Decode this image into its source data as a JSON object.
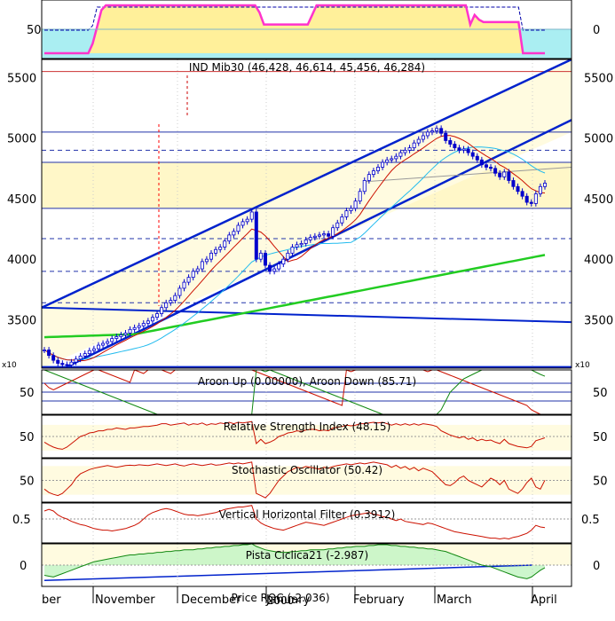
{
  "chart_data": [
    {
      "type": "line",
      "panel": "top-indicator",
      "yticks": [
        50
      ],
      "right_ticks": [
        0
      ],
      "series": [
        {
          "values": [
            0,
            0,
            0,
            0,
            0,
            0,
            0,
            0,
            0,
            0,
            0,
            20,
            55,
            90,
            100,
            100,
            100,
            100,
            100,
            100,
            100,
            100,
            100,
            100,
            100,
            100,
            100,
            100,
            100,
            100,
            100,
            100,
            100,
            100,
            100,
            100,
            100,
            100,
            100,
            100,
            100,
            100,
            100,
            100,
            100,
            100,
            100,
            100,
            100,
            85,
            60,
            60,
            60,
            60,
            60,
            60,
            60,
            60,
            60,
            60,
            60,
            80,
            100,
            100,
            100,
            100,
            100,
            100,
            100,
            100,
            100,
            100,
            100,
            100,
            100,
            100,
            100,
            100,
            100,
            100,
            100,
            100,
            100,
            100,
            100,
            100,
            100,
            100,
            100,
            100,
            100,
            100,
            100,
            100,
            100,
            100,
            100,
            60,
            80,
            70,
            65,
            65,
            65,
            65,
            65,
            65,
            65,
            65,
            65,
            0,
            0,
            0,
            0,
            0,
            0
          ]
        }
      ]
    },
    {
      "type": "candlestick",
      "panel": "price",
      "title": "IND Mib30 (46,428, 46,614, 45,456, 46,284)",
      "ylim": [
        3100,
        5650
      ],
      "yticks": [
        3500,
        4000,
        4500,
        5000,
        5500
      ],
      "scale_label": "x10",
      "close": [
        3250,
        3205,
        3165,
        3140,
        3130,
        3125,
        3150,
        3175,
        3200,
        3220,
        3245,
        3260,
        3290,
        3305,
        3320,
        3345,
        3360,
        3375,
        3390,
        3420,
        3435,
        3450,
        3470,
        3490,
        3520,
        3550,
        3600,
        3640,
        3660,
        3700,
        3760,
        3810,
        3850,
        3900,
        3920,
        3980,
        4000,
        4050,
        4080,
        4100,
        4150,
        4200,
        4230,
        4280,
        4310,
        4330,
        4390,
        4000,
        4050,
        3950,
        3900,
        3920,
        3960,
        4000,
        4050,
        4100,
        4120,
        4130,
        4160,
        4180,
        4190,
        4200,
        4210,
        4190,
        4260,
        4300,
        4350,
        4400,
        4420,
        4480,
        4560,
        4650,
        4700,
        4730,
        4760,
        4800,
        4820,
        4830,
        4850,
        4880,
        4900,
        4920,
        4960,
        4990,
        5020,
        5050,
        5060,
        5080,
        5040,
        4980,
        4950,
        4920,
        4900,
        4910,
        4880,
        4850,
        4820,
        4780,
        4760,
        4750,
        4710,
        4680,
        4720,
        4650,
        4600,
        4560,
        4520,
        4470,
        4460,
        4540,
        4600,
        4628
      ]
    },
    {
      "type": "line",
      "panel": "aroon",
      "title": "Aroon Up (0.00000), Aroon Down (85.71)",
      "yticks": [
        50
      ],
      "right_ticks": [
        50
      ],
      "series": [
        {
          "values": [
            70,
            60,
            55,
            60,
            65,
            70,
            75,
            80,
            85,
            90,
            95,
            100,
            100,
            96,
            92,
            88,
            84,
            80,
            76,
            72,
            100,
            96,
            92,
            100,
            100,
            100,
            100,
            96,
            92,
            100,
            100,
            100,
            100,
            100,
            100,
            100,
            100,
            100,
            100,
            100,
            100,
            100,
            100,
            100,
            100,
            100,
            100,
            96,
            92,
            88,
            84,
            80,
            76,
            72,
            68,
            64,
            60,
            56,
            52,
            48,
            44,
            40,
            36,
            32,
            28,
            24,
            20,
            100,
            96,
            100,
            100,
            100,
            100,
            100,
            100,
            100,
            100,
            100,
            100,
            100,
            100,
            100,
            100,
            100,
            100,
            96,
            100,
            100,
            96,
            92,
            88,
            84,
            80,
            76,
            72,
            68,
            64,
            60,
            56,
            52,
            48,
            44,
            40,
            36,
            32,
            28,
            24,
            20,
            10,
            5,
            0,
            0
          ]
        },
        {
          "values": [
            100,
            96,
            92,
            88,
            84,
            80,
            76,
            72,
            68,
            64,
            60,
            56,
            52,
            48,
            44,
            40,
            36,
            32,
            28,
            24,
            20,
            16,
            12,
            8,
            4,
            0,
            0,
            0,
            0,
            0,
            0,
            0,
            0,
            0,
            0,
            0,
            0,
            0,
            0,
            0,
            0,
            0,
            0,
            0,
            0,
            0,
            0,
            100,
            100,
            96,
            100,
            96,
            92,
            88,
            84,
            80,
            76,
            72,
            68,
            64,
            60,
            56,
            52,
            48,
            44,
            40,
            36,
            32,
            28,
            24,
            20,
            16,
            12,
            8,
            4,
            0,
            0,
            0,
            0,
            0,
            0,
            0,
            0,
            0,
            0,
            0,
            0,
            0,
            10,
            30,
            50,
            60,
            70,
            80,
            85,
            90,
            95,
            100,
            100,
            100,
            100,
            100,
            100,
            100,
            100,
            100,
            100,
            100,
            100,
            95,
            90,
            85.71
          ]
        }
      ]
    },
    {
      "type": "line",
      "panel": "rsi",
      "title": "Relative Strength Index (48.15)",
      "yticks": [
        50
      ],
      "right_ticks": [
        50
      ],
      "series": [
        {
          "values": [
            42,
            38,
            35,
            33,
            32,
            35,
            40,
            45,
            50,
            52,
            55,
            56,
            58,
            58,
            60,
            60,
            62,
            61,
            60,
            62,
            62,
            63,
            64,
            64,
            65,
            66,
            68,
            68,
            66,
            67,
            68,
            69,
            66,
            68,
            67,
            69,
            66,
            68,
            67,
            69,
            68,
            70,
            68,
            70,
            69,
            70,
            71,
            40,
            46,
            40,
            42,
            45,
            50,
            52,
            55,
            56,
            58,
            57,
            59,
            60,
            60,
            58,
            59,
            58,
            62,
            63,
            64,
            66,
            65,
            66,
            68,
            68,
            69,
            70,
            69,
            70,
            68,
            66,
            68,
            66,
            68,
            66,
            68,
            66,
            68,
            67,
            66,
            64,
            58,
            55,
            52,
            50,
            48,
            50,
            46,
            48,
            44,
            46,
            44,
            45,
            42,
            40,
            46,
            40,
            38,
            36,
            35,
            34,
            36,
            44,
            46,
            48.15
          ]
        }
      ]
    },
    {
      "type": "line",
      "panel": "stochastic",
      "title": "Stochastic Oscillator (50.42)",
      "yticks": [
        50
      ],
      "right_ticks": [
        50
      ],
      "series": [
        {
          "values": [
            30,
            22,
            18,
            15,
            20,
            30,
            40,
            55,
            65,
            70,
            75,
            78,
            80,
            82,
            84,
            82,
            80,
            82,
            84,
            85,
            84,
            86,
            85,
            84,
            86,
            88,
            86,
            84,
            86,
            88,
            85,
            83,
            86,
            88,
            86,
            84,
            86,
            88,
            85,
            86,
            88,
            90,
            88,
            90,
            88,
            90,
            92,
            20,
            15,
            10,
            20,
            35,
            50,
            60,
            70,
            75,
            80,
            78,
            82,
            80,
            78,
            76,
            80,
            78,
            82,
            84,
            86,
            88,
            86,
            88,
            90,
            88,
            90,
            92,
            90,
            88,
            86,
            80,
            85,
            78,
            82,
            75,
            80,
            72,
            78,
            74,
            70,
            60,
            50,
            40,
            38,
            45,
            55,
            60,
            50,
            45,
            40,
            35,
            45,
            55,
            50,
            40,
            50,
            30,
            25,
            20,
            30,
            45,
            55,
            35,
            30,
            50.42
          ]
        }
      ]
    },
    {
      "type": "line",
      "panel": "vhf",
      "title": "Vertical Horizontal Filter (0.3912)",
      "yticks": [
        0.5
      ],
      "right_ticks": [
        0.5
      ],
      "series": [
        {
          "values": [
            0.6,
            0.62,
            0.6,
            0.55,
            0.52,
            0.5,
            0.47,
            0.45,
            0.43,
            0.42,
            0.4,
            0.38,
            0.37,
            0.36,
            0.36,
            0.35,
            0.36,
            0.37,
            0.38,
            0.4,
            0.42,
            0.45,
            0.5,
            0.55,
            0.58,
            0.6,
            0.62,
            0.63,
            0.62,
            0.6,
            0.58,
            0.56,
            0.55,
            0.55,
            0.54,
            0.55,
            0.56,
            0.57,
            0.58,
            0.6,
            0.62,
            0.63,
            0.64,
            0.65,
            0.65,
            0.66,
            0.67,
            0.5,
            0.45,
            0.42,
            0.4,
            0.38,
            0.37,
            0.36,
            0.38,
            0.4,
            0.42,
            0.44,
            0.46,
            0.45,
            0.44,
            0.43,
            0.42,
            0.44,
            0.46,
            0.48,
            0.5,
            0.52,
            0.54,
            0.55,
            0.56,
            0.57,
            0.58,
            0.56,
            0.55,
            0.53,
            0.52,
            0.5,
            0.48,
            0.5,
            0.47,
            0.46,
            0.45,
            0.44,
            0.43,
            0.45,
            0.44,
            0.42,
            0.4,
            0.38,
            0.36,
            0.34,
            0.33,
            0.32,
            0.31,
            0.3,
            0.29,
            0.28,
            0.27,
            0.26,
            0.26,
            0.25,
            0.26,
            0.25,
            0.27,
            0.28,
            0.3,
            0.32,
            0.36,
            0.42,
            0.4,
            0.3912
          ]
        }
      ]
    },
    {
      "type": "line",
      "panel": "pista-ciclica",
      "title": "Pista Ciclica21 (-2.987)",
      "yticks": [
        0
      ],
      "right_ticks": [
        0
      ],
      "series": [
        {
          "values": [
            -12,
            -13,
            -14,
            -12,
            -10,
            -8,
            -6,
            -4,
            -2,
            0,
            2,
            4,
            5,
            6,
            7,
            8,
            9,
            10,
            11,
            12,
            12,
            13,
            13,
            14,
            14,
            15,
            15,
            16,
            16,
            17,
            17,
            18,
            18,
            18,
            19,
            19,
            20,
            20,
            21,
            21,
            22,
            22,
            23,
            23,
            24,
            24,
            25,
            22,
            20,
            18,
            17,
            16,
            15,
            15,
            15,
            16,
            16,
            17,
            17,
            18,
            18,
            18,
            18,
            19,
            19,
            20,
            20,
            21,
            21,
            22,
            22,
            22,
            23,
            23,
            24,
            24,
            24,
            23,
            23,
            22,
            22,
            21,
            21,
            20,
            20,
            19,
            19,
            18,
            17,
            16,
            14,
            12,
            10,
            8,
            6,
            4,
            2,
            0,
            -1,
            -2,
            -4,
            -6,
            -8,
            -10,
            -12,
            -14,
            -15,
            -16,
            -14,
            -10,
            -6,
            -2.987
          ]
        }
      ]
    }
  ],
  "bottom_label": "Price ROC (-2.036)",
  "year_label": "2000",
  "month_labels": [
    "ber",
    "November",
    "December",
    "January",
    "February",
    "March",
    "April"
  ],
  "colors": {
    "candle": "#0000cc",
    "channel": "#0022cc",
    "ma_short": "#cc1100",
    "ma_mid": "#22bbee",
    "ma_long": "#22cc22",
    "flat_ma": "#999999",
    "top_fill_yellow": "#fff09a",
    "top_fill_cyan": "#aaeef2",
    "top_line": "#ff33cc",
    "indicator_red": "#cc1100",
    "aroon_green": "#118811",
    "band_fill": "#fffbe0",
    "cyclica_green": "#118811",
    "cyclica_fill": "#c4f5c4"
  }
}
